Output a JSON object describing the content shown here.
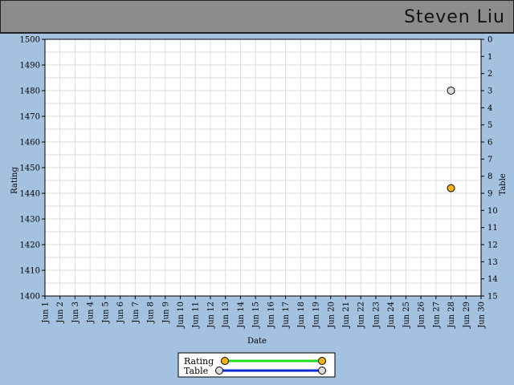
{
  "header": {
    "name": "Steven Liu"
  },
  "chart_data": {
    "type": "scatter",
    "xlabel": "Date",
    "ylabel": "Rating",
    "y2label": "Table",
    "x_categories": [
      "Jun 1",
      "Jun 2",
      "Jun 3",
      "Jun 4",
      "Jun 5",
      "Jun 6",
      "Jun 7",
      "Jun 8",
      "Jun 9",
      "Jun 10",
      "Jun 11",
      "Jun 12",
      "Jun 13",
      "Jun 14",
      "Jun 15",
      "Jun 16",
      "Jun 17",
      "Jun 18",
      "Jun 19",
      "Jun 20",
      "Jun 21",
      "Jun 22",
      "Jun 23",
      "Jun 24",
      "Jun 25",
      "Jun 26",
      "Jun 27",
      "Jun 28",
      "Jun 29",
      "Jun 30"
    ],
    "ylim": [
      1400,
      1500
    ],
    "y_ticks": [
      1400,
      1410,
      1420,
      1430,
      1440,
      1450,
      1460,
      1470,
      1480,
      1490,
      1500
    ],
    "y2lim": [
      0,
      15
    ],
    "y2_inverted": true,
    "y2_ticks": [
      0,
      1,
      2,
      3,
      4,
      5,
      6,
      7,
      8,
      9,
      10,
      11,
      12,
      13,
      14,
      15
    ],
    "grid": true,
    "legend_position": "bottom-center",
    "series": [
      {
        "name": "Rating",
        "axis": "left",
        "marker_color": "#f5b316",
        "line_color": "#22dd22",
        "points": [
          {
            "x": "Jun 28",
            "y": 1442
          }
        ]
      },
      {
        "name": "Table",
        "axis": "right",
        "marker_color": "#dcdcdc",
        "line_color": "#0a2ad0",
        "points": [
          {
            "x": "Jun 28",
            "y": 3
          }
        ]
      }
    ]
  }
}
